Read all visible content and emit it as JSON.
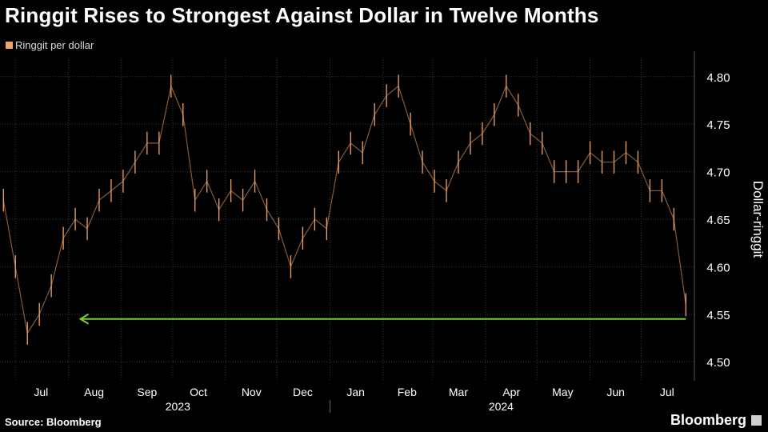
{
  "title": "Ringgit Rises to Strongest Against Dollar in Twelve Months",
  "source": "Source: Bloomberg",
  "brand": "Bloomberg",
  "colors": {
    "series": "#f0a56a",
    "arrow": "#7ccc2a",
    "grid": "#3a3a3a",
    "background": "#000000"
  },
  "chart_data": {
    "type": "line",
    "title": "Ringgit Rises to Strongest Against Dollar in Twelve Months",
    "ylabel": "Dollar-ringgit",
    "legend": "top-left",
    "grid": true,
    "ylim": [
      4.48,
      4.82
    ],
    "y_ticks": [
      "4.50",
      "4.55",
      "4.60",
      "4.65",
      "4.70",
      "4.75",
      "4.80"
    ],
    "x_months": [
      "Jul",
      "Aug",
      "Sep",
      "Oct",
      "Nov",
      "Dec",
      "Jan",
      "Feb",
      "Mar",
      "Apr",
      "May",
      "Jun",
      "Jul"
    ],
    "x_years": [
      "2023",
      "2024"
    ],
    "series": [
      {
        "name": "Ringgit per dollar",
        "x": [
          "2023-06-24",
          "2023-07-01",
          "2023-07-08",
          "2023-07-15",
          "2023-07-22",
          "2023-07-29",
          "2023-08-05",
          "2023-08-12",
          "2023-08-19",
          "2023-08-26",
          "2023-09-02",
          "2023-09-09",
          "2023-09-16",
          "2023-09-23",
          "2023-09-30",
          "2023-10-07",
          "2023-10-14",
          "2023-10-21",
          "2023-10-28",
          "2023-11-04",
          "2023-11-11",
          "2023-11-18",
          "2023-11-25",
          "2023-12-02",
          "2023-12-09",
          "2023-12-16",
          "2023-12-23",
          "2023-12-30",
          "2024-01-06",
          "2024-01-13",
          "2024-01-20",
          "2024-01-27",
          "2024-02-03",
          "2024-02-10",
          "2024-02-17",
          "2024-02-24",
          "2024-03-02",
          "2024-03-09",
          "2024-03-16",
          "2024-03-23",
          "2024-03-30",
          "2024-04-06",
          "2024-04-13",
          "2024-04-20",
          "2024-04-27",
          "2024-05-04",
          "2024-05-11",
          "2024-05-18",
          "2024-05-25",
          "2024-06-01",
          "2024-06-08",
          "2024-06-15",
          "2024-06-22",
          "2024-06-29",
          "2024-07-06",
          "2024-07-13",
          "2024-07-20",
          "2024-07-27"
        ],
        "values": [
          4.67,
          4.6,
          4.53,
          4.55,
          4.58,
          4.63,
          4.65,
          4.64,
          4.67,
          4.68,
          4.69,
          4.71,
          4.73,
          4.73,
          4.79,
          4.76,
          4.67,
          4.69,
          4.66,
          4.68,
          4.67,
          4.69,
          4.66,
          4.64,
          4.6,
          4.63,
          4.65,
          4.64,
          4.71,
          4.73,
          4.72,
          4.76,
          4.78,
          4.79,
          4.75,
          4.71,
          4.69,
          4.68,
          4.71,
          4.73,
          4.74,
          4.76,
          4.79,
          4.77,
          4.74,
          4.73,
          4.7,
          4.7,
          4.7,
          4.72,
          4.71,
          4.71,
          4.72,
          4.71,
          4.68,
          4.68,
          4.65,
          4.56
        ]
      }
    ],
    "annotations": [
      {
        "type": "arrow",
        "label": "",
        "from_date": "2024-07-27",
        "to_date": "2023-08-08",
        "y": 4.545
      }
    ]
  }
}
